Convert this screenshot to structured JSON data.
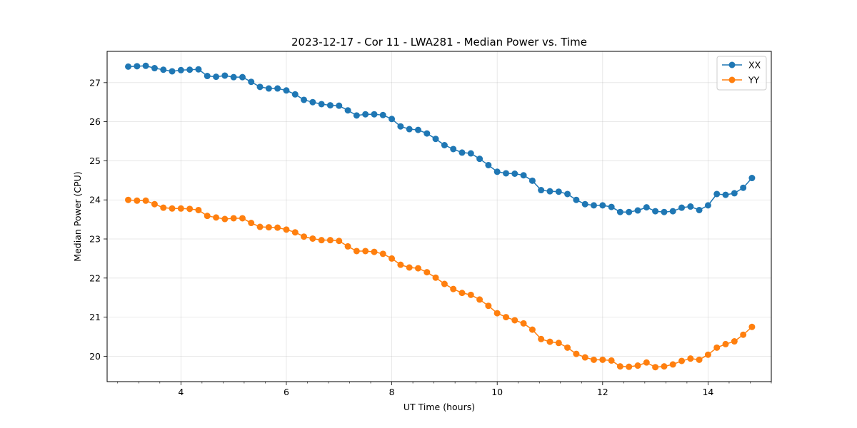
{
  "chart_data": {
    "type": "line",
    "title": "2023-12-17 - Cor 11 - LWA281 - Median Power vs. Time",
    "xlabel": "UT Time (hours)",
    "ylabel": "Median Power (CPU)",
    "xlim": [
      2.6,
      15.2
    ],
    "ylim": [
      19.35,
      27.8
    ],
    "xticks": [
      4,
      6,
      8,
      10,
      12,
      14
    ],
    "xticklabels": [
      "4",
      "6",
      "8",
      "10",
      "12",
      "14"
    ],
    "xminor_step": 0.4,
    "yticks": [
      20,
      21,
      22,
      23,
      24,
      25,
      26,
      27
    ],
    "yticklabels": [
      "20",
      "21",
      "22",
      "23",
      "24",
      "25",
      "26",
      "27"
    ],
    "grid": true,
    "legend": "top-right",
    "x": [
      3.0,
      3.167,
      3.333,
      3.5,
      3.667,
      3.833,
      4.0,
      4.167,
      4.333,
      4.5,
      4.667,
      4.833,
      5.0,
      5.167,
      5.333,
      5.5,
      5.667,
      5.833,
      6.0,
      6.167,
      6.333,
      6.5,
      6.667,
      6.833,
      7.0,
      7.167,
      7.333,
      7.5,
      7.667,
      7.833,
      8.0,
      8.167,
      8.333,
      8.5,
      8.667,
      8.833,
      9.0,
      9.167,
      9.333,
      9.5,
      9.667,
      9.833,
      10.0,
      10.167,
      10.333,
      10.5,
      10.667,
      10.833,
      11.0,
      11.167,
      11.333,
      11.5,
      11.667,
      11.833,
      12.0,
      12.167,
      12.333,
      12.5,
      12.667,
      12.833,
      13.0,
      13.167,
      13.333,
      13.5,
      13.667,
      13.833,
      14.0,
      14.167,
      14.333,
      14.5,
      14.667,
      14.833
    ],
    "series": [
      {
        "name": "XX",
        "color": "#1f77b4",
        "values": [
          27.41,
          27.42,
          27.43,
          27.37,
          27.33,
          27.29,
          27.32,
          27.33,
          27.34,
          27.17,
          27.15,
          27.18,
          27.14,
          27.14,
          27.02,
          26.89,
          26.85,
          26.85,
          26.8,
          26.7,
          26.56,
          26.5,
          26.45,
          26.42,
          26.41,
          26.29,
          26.16,
          26.19,
          26.19,
          26.17,
          26.07,
          25.88,
          25.81,
          25.79,
          25.7,
          25.56,
          25.4,
          25.3,
          25.21,
          25.19,
          25.05,
          24.89,
          24.72,
          24.68,
          24.67,
          24.63,
          24.49,
          24.25,
          24.22,
          24.21,
          24.15,
          24.0,
          23.89,
          23.86,
          23.86,
          23.82,
          23.69,
          23.69,
          23.73,
          23.81,
          23.71,
          23.69,
          23.71,
          23.8,
          23.83,
          23.74,
          23.86,
          24.15,
          24.13,
          24.17,
          24.31,
          24.56
        ]
      },
      {
        "name": "YY",
        "color": "#ff7f0e",
        "values": [
          24.0,
          23.98,
          23.98,
          23.89,
          23.8,
          23.78,
          23.78,
          23.77,
          23.74,
          23.59,
          23.55,
          23.51,
          23.53,
          23.53,
          23.41,
          23.31,
          23.3,
          23.29,
          23.24,
          23.17,
          23.06,
          23.01,
          22.97,
          22.97,
          22.95,
          22.81,
          22.69,
          22.69,
          22.67,
          22.62,
          22.5,
          22.34,
          22.27,
          22.25,
          22.15,
          22.01,
          21.85,
          21.72,
          21.62,
          21.57,
          21.45,
          21.29,
          21.1,
          21.0,
          20.92,
          20.84,
          20.68,
          20.44,
          20.37,
          20.34,
          20.22,
          20.06,
          19.97,
          19.91,
          19.91,
          19.89,
          19.74,
          19.73,
          19.76,
          19.84,
          19.72,
          19.74,
          19.79,
          19.88,
          19.94,
          19.91,
          20.04,
          20.22,
          20.31,
          20.38,
          20.55,
          20.75
        ]
      }
    ]
  }
}
